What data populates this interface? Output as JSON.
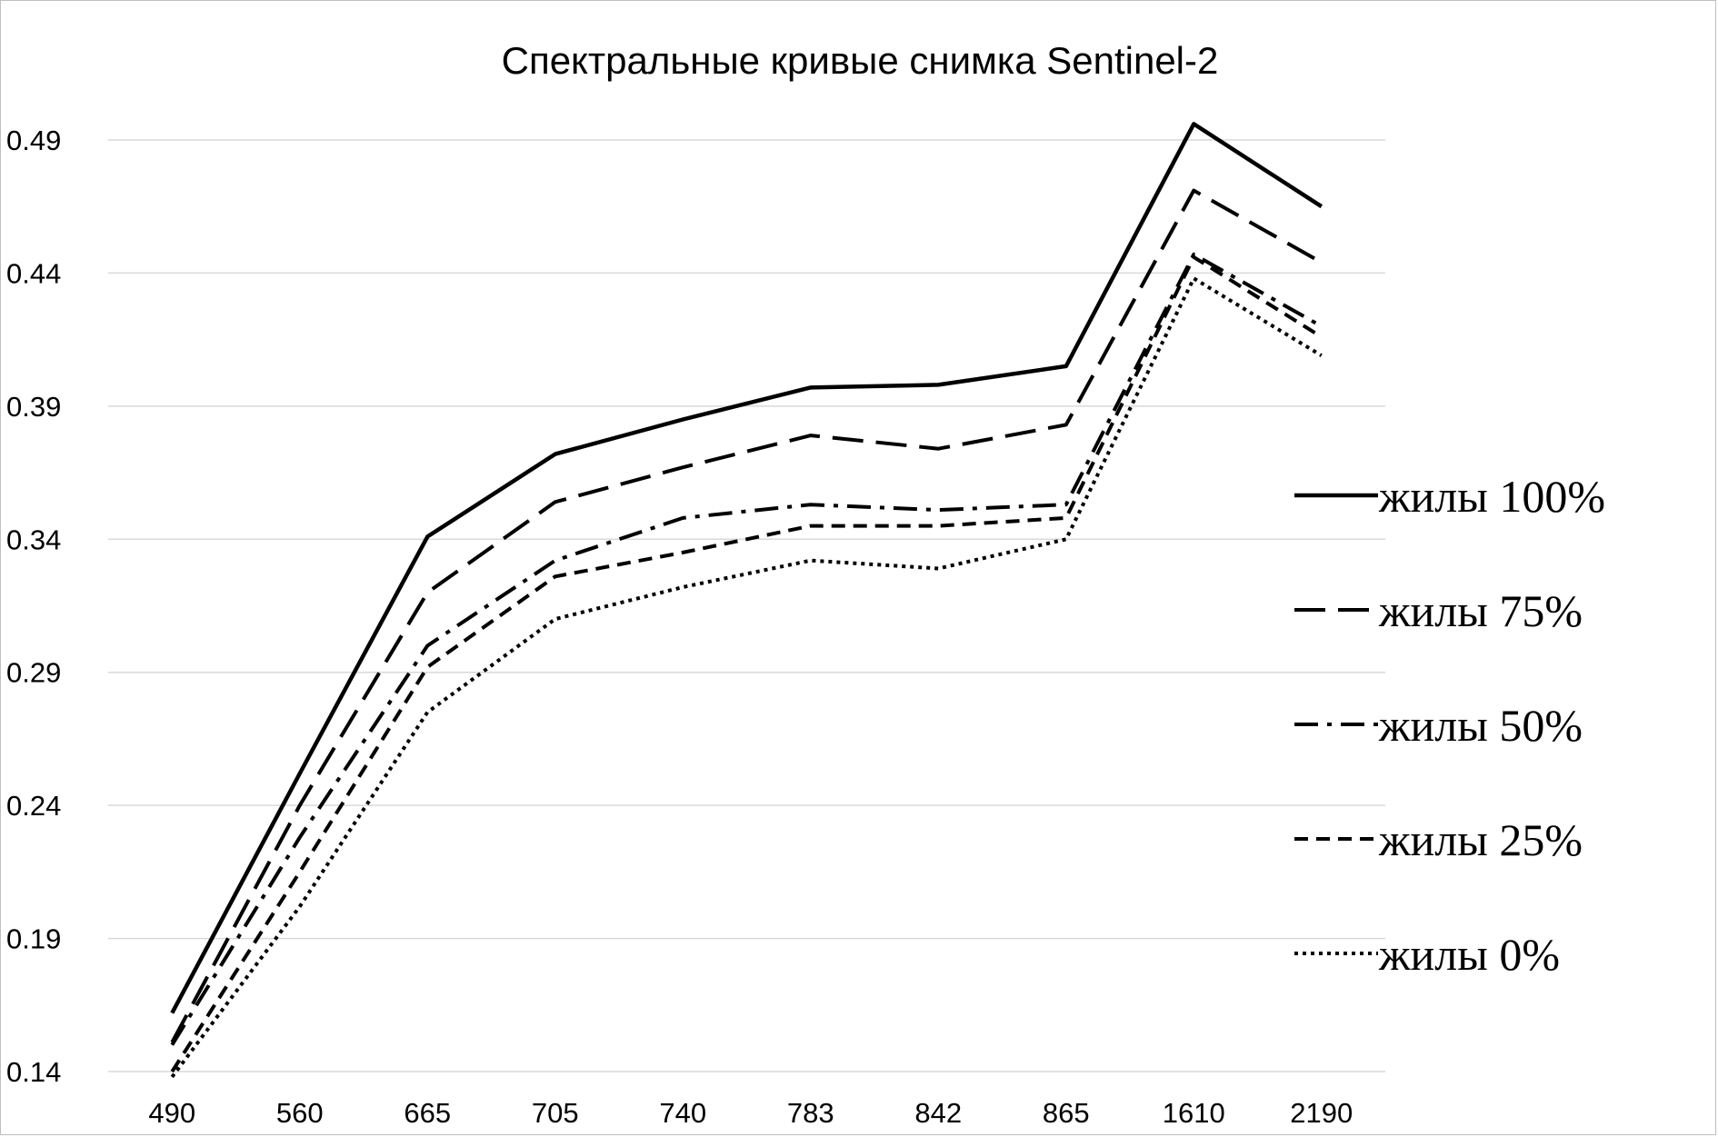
{
  "chart_data": {
    "type": "line",
    "title": "Спектральные кривые снимка Sentinel-2",
    "xlabel": "",
    "ylabel": "",
    "categories": [
      "490",
      "560",
      "665",
      "705",
      "740",
      "783",
      "842",
      "865",
      "1610",
      "2190"
    ],
    "yticks": [
      "0.14",
      "0.19",
      "0.24",
      "0.29",
      "0.34",
      "0.39",
      "0.44",
      "0.49"
    ],
    "ylim": [
      0.14,
      0.49
    ],
    "grid": true,
    "legend_position": "right",
    "series": [
      {
        "name": "жилы 100%",
        "line_style": "solid",
        "values": [
          0.162,
          0.252,
          0.341,
          0.372,
          0.385,
          0.397,
          0.398,
          0.405,
          0.496,
          0.465
        ]
      },
      {
        "name": "жилы 75%",
        "line_style": "long-dash",
        "values": [
          0.151,
          0.24,
          0.32,
          0.354,
          0.367,
          0.379,
          0.374,
          0.383,
          0.471,
          0.444
        ]
      },
      {
        "name": "жилы 50%",
        "line_style": "dash-dot",
        "values": [
          0.15,
          0.228,
          0.3,
          0.332,
          0.348,
          0.353,
          0.351,
          0.353,
          0.447,
          0.42
        ]
      },
      {
        "name": "жилы 25%",
        "line_style": "short-dash",
        "values": [
          0.14,
          0.215,
          0.292,
          0.326,
          0.335,
          0.345,
          0.345,
          0.348,
          0.446,
          0.416
        ]
      },
      {
        "name": "жилы 0%",
        "line_style": "dotted",
        "values": [
          0.138,
          0.202,
          0.275,
          0.31,
          0.322,
          0.332,
          0.329,
          0.34,
          0.438,
          0.409
        ]
      }
    ]
  }
}
